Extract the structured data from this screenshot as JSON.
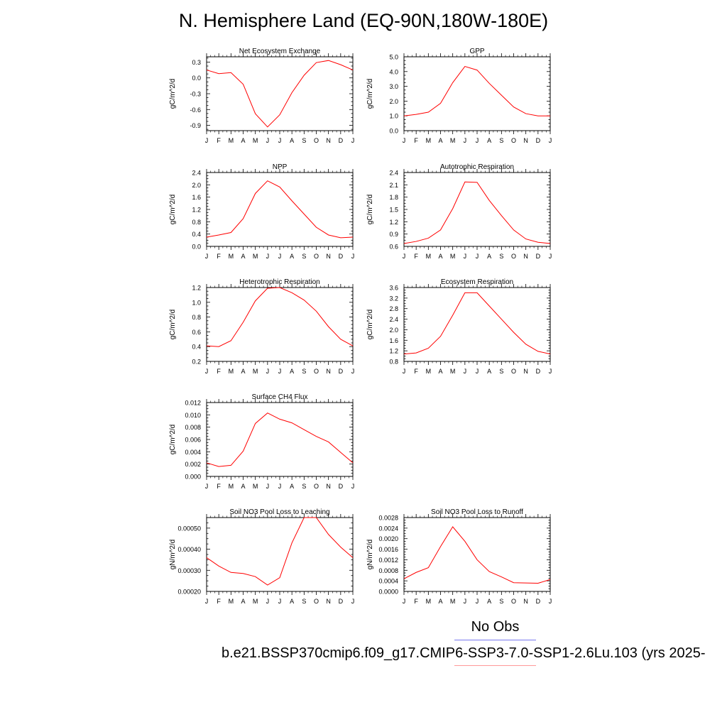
{
  "page_title": "N. Hemisphere Land (EQ-90N,180W-180E)",
  "legend": {
    "obs_label": "No Obs",
    "obs_color": "#7777ee",
    "case_label": "b.e21.BSSP370cmip6.f09_g17.CMIP6-SSP3-7.0-SSP1-2.6Lu.103 (yrs 2025-",
    "case_color": "#ff9999"
  },
  "line_color": "#ff0000",
  "chart_data": [
    {
      "type": "line",
      "title": "Net Ecosystem Exchange",
      "ylabel": "gC/m^2/d",
      "categories": [
        "J",
        "F",
        "M",
        "A",
        "M",
        "J",
        "J",
        "A",
        "S",
        "O",
        "N",
        "D",
        "J"
      ],
      "ylim": [
        -1.0,
        0.4
      ],
      "yticks": [
        -0.9,
        -0.6,
        -0.3,
        0.0,
        0.3
      ],
      "ytick_labels": [
        "-0.9",
        "-0.6",
        "-0.3",
        "0.0",
        "0.3"
      ],
      "values": [
        0.15,
        0.08,
        0.1,
        -0.12,
        -0.68,
        -0.93,
        -0.7,
        -0.28,
        0.05,
        0.29,
        0.33,
        0.25,
        0.15
      ]
    },
    {
      "type": "line",
      "title": "GPP",
      "ylabel": "gC/m^2/d",
      "categories": [
        "J",
        "F",
        "M",
        "A",
        "M",
        "J",
        "J",
        "A",
        "S",
        "O",
        "N",
        "D",
        "J"
      ],
      "ylim": [
        0.0,
        5.0
      ],
      "yticks": [
        0.0,
        1.0,
        2.0,
        3.0,
        4.0,
        5.0
      ],
      "ytick_labels": [
        "0.0",
        "1.0",
        "2.0",
        "3.0",
        "4.0",
        "5.0"
      ],
      "values": [
        1.0,
        1.1,
        1.25,
        1.85,
        3.25,
        4.35,
        4.1,
        3.2,
        2.4,
        1.6,
        1.15,
        1.0,
        1.0
      ]
    },
    {
      "type": "line",
      "title": "NPP",
      "ylabel": "gC/m^2/d",
      "categories": [
        "J",
        "F",
        "M",
        "A",
        "M",
        "J",
        "J",
        "A",
        "S",
        "O",
        "N",
        "D",
        "J"
      ],
      "ylim": [
        0.0,
        2.4
      ],
      "yticks": [
        0.0,
        0.4,
        0.8,
        1.2,
        1.6,
        2.0,
        2.4
      ],
      "ytick_labels": [
        "0.0",
        "0.4",
        "0.8",
        "1.2",
        "1.6",
        "2.0",
        "2.4"
      ],
      "values": [
        0.3,
        0.37,
        0.45,
        0.9,
        1.72,
        2.13,
        1.93,
        1.48,
        1.05,
        0.62,
        0.37,
        0.28,
        0.3
      ]
    },
    {
      "type": "line",
      "title": "Autotrophic Respiration",
      "ylabel": "gC/m^2/d",
      "categories": [
        "J",
        "F",
        "M",
        "A",
        "M",
        "J",
        "J",
        "A",
        "S",
        "O",
        "N",
        "D",
        "J"
      ],
      "ylim": [
        0.6,
        2.4
      ],
      "yticks": [
        0.6,
        0.9,
        1.2,
        1.5,
        1.8,
        2.1,
        2.4
      ],
      "ytick_labels": [
        "0.6",
        "0.9",
        "1.2",
        "1.5",
        "1.8",
        "2.1",
        "2.4"
      ],
      "values": [
        0.67,
        0.72,
        0.8,
        1.0,
        1.52,
        2.17,
        2.16,
        1.72,
        1.35,
        1.0,
        0.78,
        0.7,
        0.67
      ]
    },
    {
      "type": "line",
      "title": "Heterotrophic Respiration",
      "ylabel": "gC/m^2/d",
      "categories": [
        "J",
        "F",
        "M",
        "A",
        "M",
        "J",
        "J",
        "A",
        "S",
        "O",
        "N",
        "D",
        "J"
      ],
      "ylim": [
        0.2,
        1.2
      ],
      "yticks": [
        0.2,
        0.4,
        0.6,
        0.8,
        1.0,
        1.2
      ],
      "ytick_labels": [
        "0.2",
        "0.4",
        "0.6",
        "0.8",
        "1.0",
        "1.2"
      ],
      "values": [
        0.41,
        0.4,
        0.48,
        0.73,
        1.02,
        1.19,
        1.2,
        1.13,
        1.03,
        0.88,
        0.67,
        0.5,
        0.41
      ]
    },
    {
      "type": "line",
      "title": "Ecosystem Respiration",
      "ylabel": "gC/m^2/d",
      "categories": [
        "J",
        "F",
        "M",
        "A",
        "M",
        "J",
        "J",
        "A",
        "S",
        "O",
        "N",
        "D",
        "J"
      ],
      "ylim": [
        0.8,
        3.6
      ],
      "yticks": [
        0.8,
        1.2,
        1.6,
        2.0,
        2.4,
        2.8,
        3.2,
        3.6
      ],
      "ytick_labels": [
        "0.8",
        "1.2",
        "1.6",
        "2.0",
        "2.4",
        "2.8",
        "3.2",
        "3.6"
      ],
      "values": [
        1.08,
        1.12,
        1.3,
        1.75,
        2.55,
        3.4,
        3.4,
        2.9,
        2.4,
        1.9,
        1.45,
        1.18,
        1.08
      ]
    },
    {
      "type": "line",
      "title": "Surface CH4 Flux",
      "ylabel": "gC/m^2/d",
      "categories": [
        "J",
        "F",
        "M",
        "A",
        "M",
        "J",
        "J",
        "A",
        "S",
        "O",
        "N",
        "D",
        "J"
      ],
      "ylim": [
        0.0,
        0.012
      ],
      "yticks": [
        0.0,
        0.002,
        0.004,
        0.006,
        0.008,
        0.01,
        0.012
      ],
      "ytick_labels": [
        "0.000",
        "0.002",
        "0.004",
        "0.006",
        "0.008",
        "0.010",
        "0.012"
      ],
      "values": [
        0.0022,
        0.0016,
        0.0018,
        0.0041,
        0.0086,
        0.0103,
        0.0093,
        0.0087,
        0.0076,
        0.0065,
        0.0056,
        0.0039,
        0.0022
      ]
    },
    {
      "type": "line",
      "title": "Soil NO3 Pool Loss to Leaching",
      "ylabel": "gN/m^2/d",
      "categories": [
        "J",
        "F",
        "M",
        "A",
        "M",
        "J",
        "J",
        "A",
        "S",
        "O",
        "N",
        "D",
        "J"
      ],
      "ylim": [
        0.0002,
        0.00055
      ],
      "yticks": [
        0.0002,
        0.0003,
        0.0004,
        0.0005
      ],
      "ytick_labels": [
        "0.00020",
        "0.00030",
        "0.00040",
        "0.00050"
      ],
      "values": [
        0.00036,
        0.00032,
        0.00029,
        0.000285,
        0.00027,
        0.00023,
        0.000265,
        0.00043,
        0.00055,
        0.00055,
        0.00047,
        0.00041,
        0.00036
      ]
    },
    {
      "type": "line",
      "title": "Soil NO3 Pool Loss to Runoff",
      "ylabel": "gN/m^2/d",
      "categories": [
        "J",
        "F",
        "M",
        "A",
        "M",
        "J",
        "J",
        "A",
        "S",
        "O",
        "N",
        "D",
        "J"
      ],
      "ylim": [
        0.0,
        0.0028
      ],
      "yticks": [
        0.0,
        0.0004,
        0.0008,
        0.0012,
        0.0016,
        0.002,
        0.0024,
        0.0028
      ],
      "ytick_labels": [
        "0.0000",
        "0.0004",
        "0.0008",
        "0.0012",
        "0.0016",
        "0.0020",
        "0.0024",
        "0.0028"
      ],
      "values": [
        0.00048,
        0.00072,
        0.0009,
        0.0017,
        0.00245,
        0.0019,
        0.0012,
        0.00075,
        0.00055,
        0.00033,
        0.00032,
        0.00031,
        0.00045
      ]
    }
  ]
}
